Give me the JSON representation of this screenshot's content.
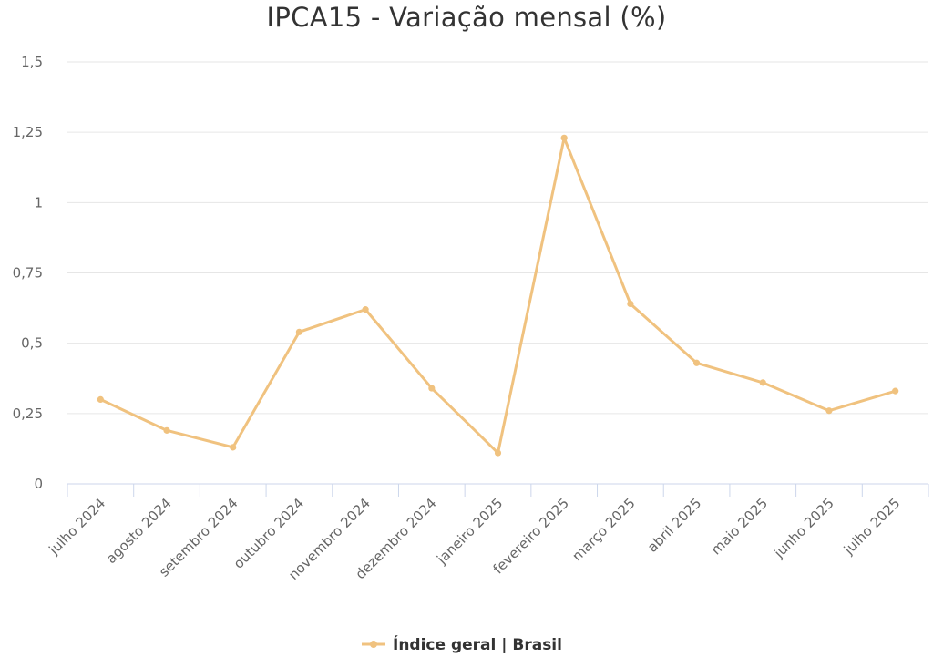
{
  "chart_data": {
    "type": "line",
    "title": "IPCA15 - Variação mensal (%)",
    "categories": [
      "julho 2024",
      "agosto 2024",
      "setembro 2024",
      "outubro 2024",
      "novembro 2024",
      "dezembro 2024",
      "janeiro 2025",
      "fevereiro 2025",
      "março 2025",
      "abril 2025",
      "maio 2025",
      "junho 2025",
      "julho 2025"
    ],
    "series": [
      {
        "name": "Índice geral | Brasil",
        "color": "#f0c27f",
        "values": [
          0.3,
          0.19,
          0.13,
          0.54,
          0.62,
          0.34,
          0.11,
          1.23,
          0.64,
          0.43,
          0.36,
          0.26,
          0.33
        ]
      }
    ],
    "y_ticks": [
      0,
      0.25,
      0.5,
      0.75,
      1,
      1.25,
      1.5
    ],
    "y_tick_labels": [
      "0",
      "0,25",
      "0,5",
      "0,75",
      "1",
      "1,25",
      "1,5"
    ],
    "ylim": [
      0,
      1.5
    ],
    "grid": true,
    "legend_position": "bottom-center"
  }
}
